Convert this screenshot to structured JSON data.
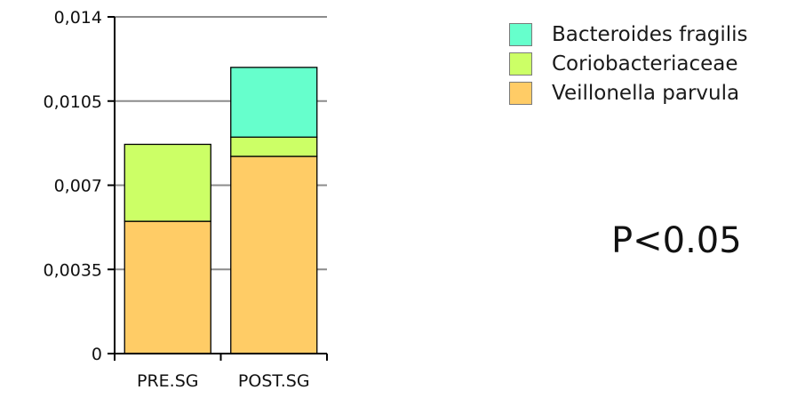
{
  "chart_data": {
    "type": "bar",
    "stacked": true,
    "categories": [
      "PRE.SG",
      "POST.SG"
    ],
    "series": [
      {
        "name": "Veillonella parvula",
        "color": "#ffcc66",
        "values": [
          0.0055,
          0.0082
        ]
      },
      {
        "name": "Coriobacteriaceae",
        "color": "#ccff66",
        "values": [
          0.0032,
          0.0008
        ]
      },
      {
        "name": "Bacteroides fragilis",
        "color": "#66ffcc",
        "values": [
          0.0,
          0.0029
        ]
      }
    ],
    "ylim": [
      0,
      0.014
    ],
    "yticks": [
      0,
      0.0035,
      0.007,
      0.0105,
      0.014
    ],
    "ytick_labels": [
      "0",
      "0,0035",
      "0,007",
      "0,0105",
      "0,014"
    ],
    "grid": true,
    "legend_position": "top-right",
    "legend": [
      "Bacteroides fragilis",
      "Coriobacteriaceae",
      "Veillonella parvula"
    ],
    "annotation": "P<0.05",
    "title": "",
    "xlabel": "",
    "ylabel": ""
  }
}
